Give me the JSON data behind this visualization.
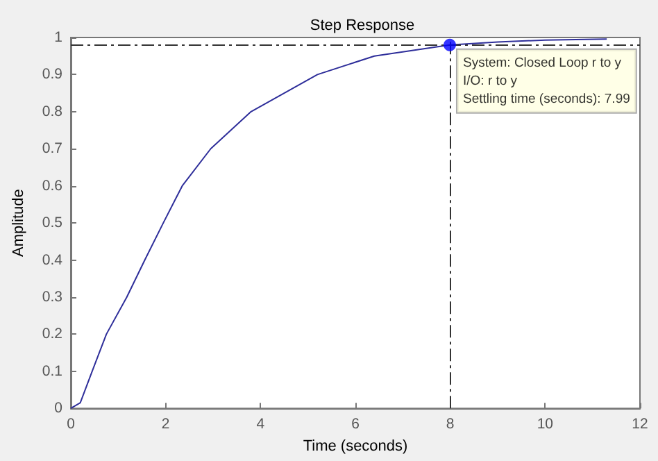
{
  "chart_data": {
    "type": "line",
    "title": "Step Response",
    "xlabel": "Time (seconds)",
    "ylabel": "Amplitude",
    "x": [
      0,
      0.2,
      0.45,
      0.75,
      1.18,
      1.56,
      1.95,
      2.35,
      2.95,
      3.8,
      5.2,
      6.4,
      7.99,
      9,
      10,
      11.3
    ],
    "series": [
      {
        "color": "#2e2e9a",
        "marker": "none",
        "values": [
          0,
          0.015,
          0.1,
          0.2,
          0.3,
          0.4,
          0.5,
          0.6,
          0.7,
          0.8,
          0.9,
          0.95,
          0.98,
          0.988,
          0.993,
          0.996
        ]
      },
      {
        "type": "scatter",
        "marker": "circle",
        "color": "#0000ff",
        "x": [
          7.99
        ],
        "values": [
          0.98
        ]
      }
    ],
    "line_style": "solid",
    "grid": false,
    "xlim": [
      0,
      12
    ],
    "xticks": [
      0,
      2,
      4,
      6,
      8,
      10,
      12
    ],
    "ylim": [
      0,
      1
    ],
    "yticks": [
      0,
      0.1,
      0.2,
      0.3,
      0.4,
      0.5,
      0.6,
      0.7,
      0.8,
      0.9,
      1
    ],
    "ref_lines": [
      {
        "axis": "y",
        "value": 0.98,
        "color": "#333333",
        "line_style": "dashed"
      },
      {
        "axis": "x",
        "value": 7.99,
        "color": "#333333",
        "line_style": "dashed"
      }
    ],
    "annotations": [
      {
        "text": "System: Closed Loop r to y\nI/O: r to y\nSettling time (seconds): 7.99",
        "x": 7.99,
        "y": 0.98
      }
    ]
  }
}
